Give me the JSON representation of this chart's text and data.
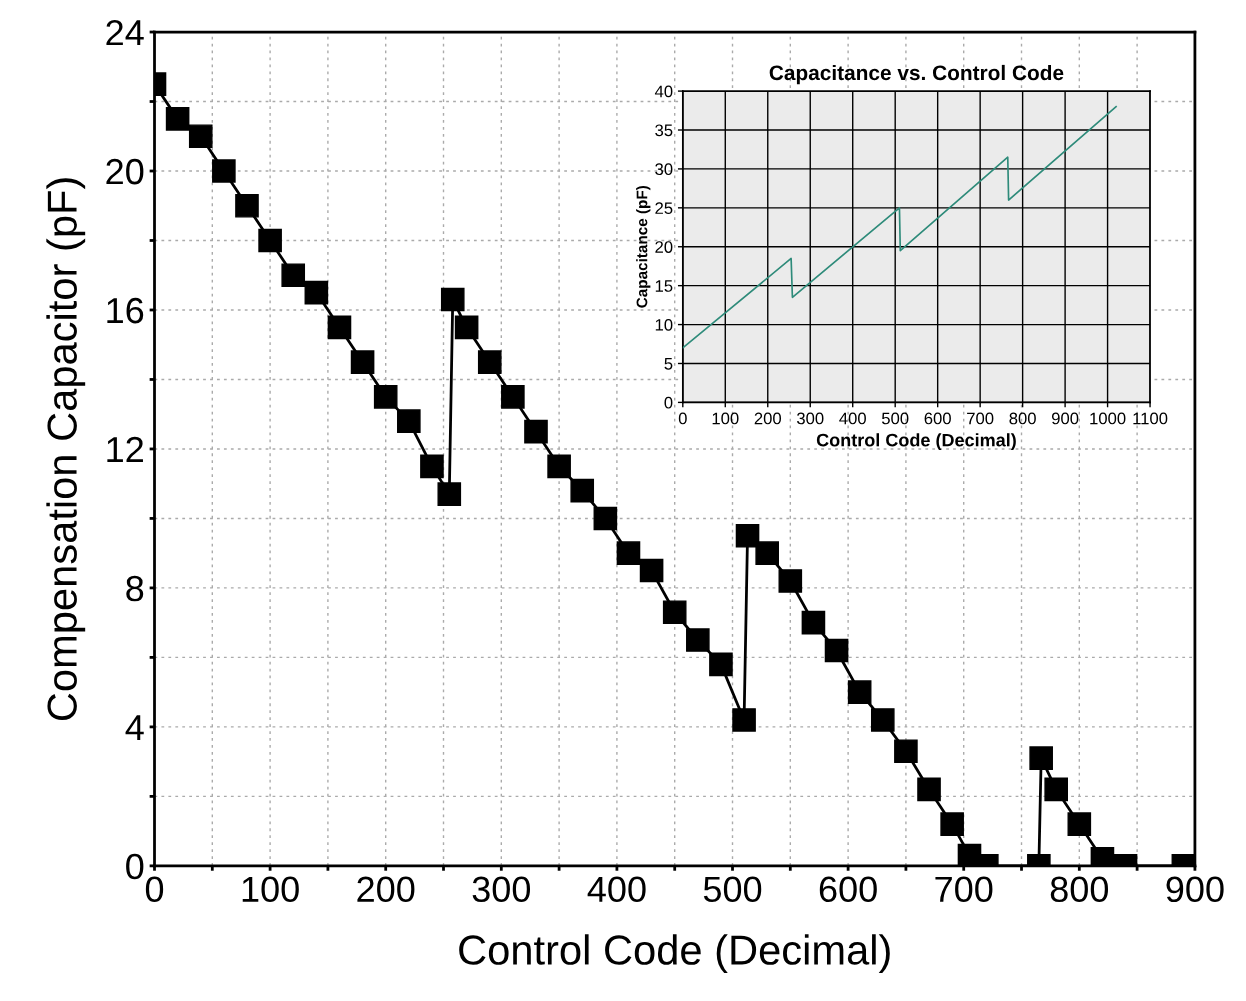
{
  "chart_data": [
    {
      "type": "line",
      "xlabel": "Control Code (Decimal)",
      "ylabel": "Compensation Capacitor (pF)",
      "xlim": [
        0,
        900
      ],
      "ylim": [
        0,
        24
      ],
      "xticks": [
        0,
        {
          "value": 50,
          "label": null
        },
        100,
        {
          "value": 150,
          "label": null
        },
        200,
        {
          "value": 250,
          "label": null
        },
        300,
        {
          "value": 350,
          "label": null
        },
        400,
        {
          "value": 450,
          "label": null
        },
        500,
        {
          "value": 550,
          "label": null
        },
        600,
        {
          "value": 650,
          "label": null
        },
        700,
        {
          "value": 750,
          "label": null
        },
        800,
        {
          "value": 850,
          "label": null
        },
        900
      ],
      "yticks": [
        0,
        {
          "value": 2,
          "label": null
        },
        4,
        {
          "value": 6,
          "label": null
        },
        8,
        {
          "value": 10,
          "label": null
        },
        12,
        {
          "value": 14,
          "label": null
        },
        16,
        {
          "value": 18,
          "label": null
        },
        20,
        {
          "value": 22,
          "label": null
        },
        24
      ],
      "grid": true,
      "marker": "square",
      "line_style": "solid",
      "series": [
        {
          "color": "#000000",
          "x": [
            0,
            20,
            40,
            60,
            80,
            100,
            120,
            140,
            160,
            180,
            200,
            220,
            240,
            255,
            258,
            270,
            290,
            310,
            330,
            350,
            370,
            390,
            410,
            430,
            450,
            470,
            490,
            510,
            513,
            530,
            550,
            570,
            590,
            610,
            630,
            650,
            670,
            690,
            705,
            720,
            765,
            767,
            780,
            800,
            820,
            840,
            890
          ],
          "values": [
            22.5,
            21.5,
            21,
            20,
            19,
            18,
            17,
            16.5,
            15.5,
            14.5,
            13.5,
            12.8,
            11.5,
            10.7,
            16.3,
            15.5,
            14.5,
            13.5,
            12.5,
            11.5,
            10.8,
            10,
            9,
            8.5,
            7.3,
            6.5,
            5.8,
            4.2,
            9.5,
            9,
            8.2,
            7,
            6.2,
            5,
            4.2,
            3.3,
            2.2,
            1.2,
            0.3,
            0,
            0,
            3.1,
            2.2,
            1.2,
            0.2,
            0,
            0
          ]
        }
      ]
    },
    {
      "type": "line",
      "title": "Capacitance vs. Control Code",
      "xlabel": "Control Code (Decimal)",
      "ylabel": "Capacitance (pF)",
      "xlim": [
        0,
        1100
      ],
      "ylim": [
        0,
        40
      ],
      "xticks": [
        0,
        100,
        200,
        300,
        400,
        500,
        600,
        700,
        800,
        900,
        1000,
        1100
      ],
      "yticks": [
        0,
        5,
        10,
        15,
        20,
        25,
        30,
        35,
        40
      ],
      "grid": true,
      "marker": "none",
      "line_style": "solid",
      "series": [
        {
          "color": "#2e8b7a",
          "x": [
            0,
            255,
            258,
            510,
            512,
            765,
            767,
            1020
          ],
          "values": [
            7,
            18.5,
            13.5,
            25,
            19.5,
            31.5,
            26,
            38
          ]
        }
      ]
    }
  ]
}
